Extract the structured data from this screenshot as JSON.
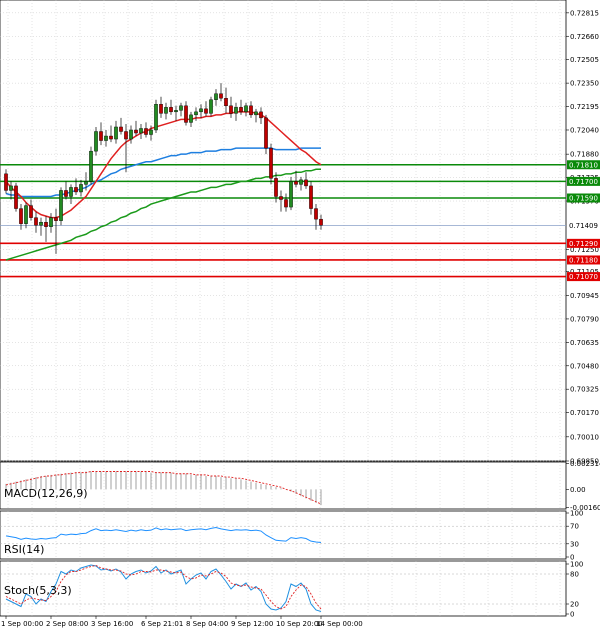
{
  "chart_data": {
    "type": "candlestick",
    "main": {
      "ylim": [
        0.6985,
        0.729
      ],
      "y_ticks": [
        {
          "value": 0.72815,
          "label": "0.72815"
        },
        {
          "value": 0.7266,
          "label": "0.72660"
        },
        {
          "value": 0.72505,
          "label": "0.72505"
        },
        {
          "value": 0.7235,
          "label": "0.72350"
        },
        {
          "value": 0.72195,
          "label": "0.72195"
        },
        {
          "value": 0.7204,
          "label": "0.72040"
        },
        {
          "value": 0.7188,
          "label": "0.71880"
        },
        {
          "value": 0.71725,
          "label": "0.71725"
        },
        {
          "value": 0.7157,
          "label": "0.71570"
        },
        {
          "value": 0.7125,
          "label": "0.71250"
        },
        {
          "value": 0.71105,
          "label": "0.71105"
        },
        {
          "value": 0.70945,
          "label": "0.70945"
        },
        {
          "value": 0.7079,
          "label": "0.70790"
        },
        {
          "value": 0.70635,
          "label": "0.70635"
        },
        {
          "value": 0.7048,
          "label": "0.70480"
        },
        {
          "value": 0.70325,
          "label": "0.70325"
        },
        {
          "value": 0.7017,
          "label": "0.70170"
        },
        {
          "value": 0.7001,
          "label": "0.70010"
        },
        {
          "value": 0.6985,
          "label": "0.69850"
        }
      ],
      "current_price": {
        "value": 0.71409,
        "label": "0.71409"
      },
      "resistance_levels": [
        {
          "value": 0.7181,
          "label": "0.71810"
        },
        {
          "value": 0.717,
          "label": "0.71700"
        },
        {
          "value": 0.7159,
          "label": "0.71590"
        }
      ],
      "support_levels": [
        {
          "value": 0.7129,
          "label": "0.71290"
        },
        {
          "value": 0.7118,
          "label": "0.71180"
        },
        {
          "value": 0.7107,
          "label": "0.71070"
        }
      ],
      "candles": [
        [
          0.7175,
          0.7178,
          0.7162,
          0.7164
        ],
        [
          0.7164,
          0.717,
          0.7158,
          0.7167
        ],
        [
          0.7167,
          0.7169,
          0.715,
          0.7152
        ],
        [
          0.7152,
          0.7155,
          0.7138,
          0.7142
        ],
        [
          0.7142,
          0.7156,
          0.7139,
          0.7154
        ],
        [
          0.7154,
          0.7158,
          0.7144,
          0.7146
        ],
        [
          0.7146,
          0.715,
          0.7136,
          0.7141
        ],
        [
          0.7141,
          0.7146,
          0.7134,
          0.7143
        ],
        [
          0.7143,
          0.7147,
          0.713,
          0.714
        ],
        [
          0.714,
          0.7149,
          0.7136,
          0.7146
        ],
        [
          0.7146,
          0.7152,
          0.7122,
          0.7144
        ],
        [
          0.7144,
          0.7166,
          0.7141,
          0.7164
        ],
        [
          0.7164,
          0.717,
          0.7158,
          0.716
        ],
        [
          0.716,
          0.7168,
          0.7155,
          0.7166
        ],
        [
          0.7166,
          0.7172,
          0.7161,
          0.7163
        ],
        [
          0.7163,
          0.7171,
          0.716,
          0.7168
        ],
        [
          0.7168,
          0.7176,
          0.7164,
          0.717
        ],
        [
          0.717,
          0.7193,
          0.7168,
          0.719
        ],
        [
          0.719,
          0.7206,
          0.7187,
          0.7203
        ],
        [
          0.7203,
          0.7209,
          0.7194,
          0.7197
        ],
        [
          0.7197,
          0.7204,
          0.7193,
          0.72
        ],
        [
          0.72,
          0.7207,
          0.7196,
          0.7198
        ],
        [
          0.7198,
          0.721,
          0.7195,
          0.7206
        ],
        [
          0.7206,
          0.7212,
          0.7201,
          0.7203
        ],
        [
          0.7203,
          0.7208,
          0.7176,
          0.7198
        ],
        [
          0.7198,
          0.7207,
          0.7195,
          0.7204
        ],
        [
          0.7204,
          0.721,
          0.72,
          0.7202
        ],
        [
          0.7202,
          0.7208,
          0.7198,
          0.7205
        ],
        [
          0.7205,
          0.7209,
          0.7199,
          0.7201
        ],
        [
          0.7201,
          0.7207,
          0.7197,
          0.7204
        ],
        [
          0.7204,
          0.7224,
          0.7202,
          0.7221
        ],
        [
          0.7221,
          0.7226,
          0.7212,
          0.7215
        ],
        [
          0.7215,
          0.7222,
          0.7211,
          0.7219
        ],
        [
          0.7219,
          0.7224,
          0.7214,
          0.7216
        ],
        [
          0.7216,
          0.722,
          0.721,
          0.7217
        ],
        [
          0.7217,
          0.7222,
          0.7213,
          0.722
        ],
        [
          0.722,
          0.7223,
          0.7207,
          0.7209
        ],
        [
          0.7209,
          0.7216,
          0.7206,
          0.7214
        ],
        [
          0.7214,
          0.7219,
          0.721,
          0.7216
        ],
        [
          0.7216,
          0.7221,
          0.7212,
          0.7218
        ],
        [
          0.7218,
          0.7223,
          0.7213,
          0.7215
        ],
        [
          0.7215,
          0.7226,
          0.7213,
          0.7224
        ],
        [
          0.7224,
          0.7231,
          0.722,
          0.7228
        ],
        [
          0.7228,
          0.7235,
          0.7223,
          0.7225
        ],
        [
          0.7225,
          0.7232,
          0.7215,
          0.722
        ],
        [
          0.722,
          0.7226,
          0.7212,
          0.7215
        ],
        [
          0.7215,
          0.7222,
          0.721,
          0.7219
        ],
        [
          0.7219,
          0.7224,
          0.7214,
          0.7216
        ],
        [
          0.7216,
          0.7222,
          0.7213,
          0.722
        ],
        [
          0.722,
          0.7223,
          0.7212,
          0.7214
        ],
        [
          0.7214,
          0.7218,
          0.7209,
          0.7216
        ],
        [
          0.7216,
          0.7219,
          0.7208,
          0.7212
        ],
        [
          0.7212,
          0.7214,
          0.7188,
          0.7192
        ],
        [
          0.7192,
          0.7195,
          0.7168,
          0.7172
        ],
        [
          0.7172,
          0.7176,
          0.7156,
          0.716
        ],
        [
          0.716,
          0.7164,
          0.715,
          0.7158
        ],
        [
          0.7158,
          0.7162,
          0.715,
          0.7153
        ],
        [
          0.7153,
          0.7173,
          0.7151,
          0.717
        ],
        [
          0.717,
          0.7177,
          0.7166,
          0.7168
        ],
        [
          0.7168,
          0.7173,
          0.7164,
          0.7171
        ],
        [
          0.7171,
          0.7176,
          0.7165,
          0.7167
        ],
        [
          0.7167,
          0.717,
          0.7148,
          0.7152
        ],
        [
          0.7152,
          0.7155,
          0.7138,
          0.7145
        ],
        [
          0.7145,
          0.7148,
          0.7138,
          0.7141
        ]
      ],
      "sma_red": [
        0.717,
        0.7166,
        0.7163,
        0.716,
        0.7156,
        0.7153,
        0.715,
        0.7148,
        0.7147,
        0.7146,
        0.7146,
        0.7147,
        0.7149,
        0.7151,
        0.7154,
        0.7157,
        0.716,
        0.7165,
        0.717,
        0.7175,
        0.718,
        0.7185,
        0.7189,
        0.7193,
        0.7196,
        0.7198,
        0.72,
        0.7202,
        0.7203,
        0.7205,
        0.7206,
        0.7207,
        0.7208,
        0.7209,
        0.721,
        0.7211,
        0.7211,
        0.7211,
        0.7212,
        0.7212,
        0.7213,
        0.7213,
        0.7214,
        0.7214,
        0.7215,
        0.7215,
        0.7216,
        0.7216,
        0.7216,
        0.7216,
        0.7215,
        0.7214,
        0.7212,
        0.7209,
        0.7206,
        0.7203,
        0.72,
        0.7197,
        0.7194,
        0.7191,
        0.7189,
        0.7186,
        0.7183,
        0.7181
      ],
      "sma_blue": [
        0.7162,
        0.7161,
        0.7161,
        0.716,
        0.716,
        0.716,
        0.716,
        0.716,
        0.716,
        0.716,
        0.7161,
        0.7161,
        0.7162,
        0.7163,
        0.7164,
        0.7165,
        0.7166,
        0.7168,
        0.717,
        0.7171,
        0.7173,
        0.7175,
        0.7176,
        0.7178,
        0.7179,
        0.718,
        0.7181,
        0.7182,
        0.7183,
        0.7183,
        0.7184,
        0.7185,
        0.7186,
        0.7187,
        0.7187,
        0.7188,
        0.7188,
        0.7189,
        0.7189,
        0.7189,
        0.719,
        0.719,
        0.719,
        0.7191,
        0.7191,
        0.7191,
        0.7192,
        0.7192,
        0.7192,
        0.7192,
        0.7192,
        0.7192,
        0.7192,
        0.7192,
        0.7191,
        0.7191,
        0.7191,
        0.7191,
        0.7191,
        0.7192,
        0.7192,
        0.7192,
        0.7192,
        0.7192
      ],
      "sma_green": [
        0.7118,
        0.7119,
        0.712,
        0.7121,
        0.7122,
        0.7123,
        0.7124,
        0.7125,
        0.7126,
        0.7127,
        0.7128,
        0.7129,
        0.713,
        0.7131,
        0.7133,
        0.7134,
        0.7135,
        0.7137,
        0.7138,
        0.714,
        0.7141,
        0.7143,
        0.7144,
        0.7146,
        0.7147,
        0.7149,
        0.715,
        0.7152,
        0.7153,
        0.7155,
        0.7156,
        0.7157,
        0.7158,
        0.7159,
        0.716,
        0.7161,
        0.7162,
        0.7163,
        0.7163,
        0.7164,
        0.7165,
        0.7166,
        0.7166,
        0.7167,
        0.7168,
        0.7168,
        0.7169,
        0.717,
        0.717,
        0.7171,
        0.7172,
        0.7172,
        0.7173,
        0.7173,
        0.7174,
        0.7174,
        0.7175,
        0.7175,
        0.7176,
        0.7176,
        0.7177,
        0.7177,
        0.7178,
        0.7178
      ]
    },
    "macd": {
      "title": "MACD(12,26,9)",
      "ylim": [
        -0.00175,
        0.00245
      ],
      "y_ticks": [
        {
          "value": 0.002314,
          "label": "0.002314"
        },
        {
          "value": 0.0,
          "label": "0.00"
        },
        {
          "value": -0.001602,
          "label": "-0.001602"
        }
      ],
      "histogram": [
        0.0005,
        0.0006,
        0.0007,
        0.0008,
        0.0009,
        0.001,
        0.0011,
        0.0012,
        0.0012,
        0.0013,
        0.0013,
        0.0014,
        0.0014,
        0.0015,
        0.0015,
        0.0015,
        0.0016,
        0.0016,
        0.0016,
        0.0016,
        0.0016,
        0.0016,
        0.0016,
        0.0016,
        0.0016,
        0.0016,
        0.0016,
        0.0016,
        0.0016,
        0.0015,
        0.0015,
        0.0015,
        0.0015,
        0.0015,
        0.0014,
        0.0014,
        0.0014,
        0.0013,
        0.0013,
        0.0013,
        0.0012,
        0.0012,
        0.0012,
        0.0011,
        0.0011,
        0.001,
        0.001,
        0.0009,
        0.0008,
        0.0007,
        0.0006,
        0.0005,
        0.0004,
        0.0003,
        0.0002,
        0.0001,
        0.0,
        -0.0002,
        -0.0004,
        -0.0006,
        -0.0008,
        -0.001,
        -0.0012,
        -0.0014
      ],
      "signal": [
        0.0004,
        0.0005,
        0.0006,
        0.0007,
        0.0008,
        0.0009,
        0.001,
        0.0011,
        0.0012,
        0.0012,
        0.0013,
        0.0013,
        0.0014,
        0.0014,
        0.0015,
        0.0015,
        0.0015,
        0.0016,
        0.0016,
        0.0016,
        0.0016,
        0.0016,
        0.0016,
        0.0016,
        0.0016,
        0.0016,
        0.0016,
        0.0016,
        0.0016,
        0.0016,
        0.0015,
        0.0015,
        0.0015,
        0.0015,
        0.0014,
        0.0014,
        0.0014,
        0.0014,
        0.0013,
        0.0013,
        0.0013,
        0.0012,
        0.0012,
        0.0012,
        0.0011,
        0.0011,
        0.001,
        0.001,
        0.0009,
        0.0008,
        0.0007,
        0.0006,
        0.0005,
        0.0004,
        0.0003,
        0.0002,
        0.0,
        -0.0001,
        -0.0003,
        -0.0005,
        -0.0007,
        -0.0009,
        -0.0011,
        -0.0013
      ]
    },
    "rsi": {
      "title": "RSI(14)",
      "ylim": [
        0,
        100
      ],
      "y_ticks": [
        {
          "value": 100,
          "label": "100"
        },
        {
          "value": 70,
          "label": "70"
        },
        {
          "value": 30,
          "label": "30"
        },
        {
          "value": 0,
          "label": "0"
        }
      ],
      "values": [
        48,
        46,
        44,
        40,
        43,
        41,
        40,
        42,
        41,
        43,
        44,
        52,
        50,
        52,
        51,
        53,
        54,
        60,
        64,
        60,
        61,
        60,
        62,
        60,
        58,
        61,
        59,
        62,
        60,
        61,
        66,
        62,
        64,
        62,
        63,
        64,
        60,
        62,
        63,
        64,
        62,
        65,
        67,
        64,
        62,
        60,
        62,
        61,
        62,
        60,
        61,
        59,
        50,
        44,
        38,
        37,
        36,
        44,
        42,
        44,
        42,
        36,
        34,
        33
      ]
    },
    "stoch": {
      "title": "Stoch(5,3,3)",
      "ylim": [
        0,
        100
      ],
      "y_ticks": [
        {
          "value": 100,
          "label": "100"
        },
        {
          "value": 80,
          "label": "80"
        },
        {
          "value": 20,
          "label": "20"
        },
        {
          "value": 0,
          "label": "0"
        }
      ],
      "k": [
        30,
        25,
        20,
        15,
        40,
        35,
        20,
        30,
        25,
        45,
        60,
        85,
        80,
        88,
        85,
        92,
        95,
        98,
        96,
        88,
        90,
        86,
        90,
        84,
        70,
        80,
        85,
        88,
        82,
        86,
        95,
        82,
        88,
        80,
        84,
        88,
        60,
        70,
        78,
        82,
        70,
        85,
        90,
        78,
        65,
        50,
        60,
        55,
        62,
        48,
        55,
        45,
        20,
        10,
        8,
        12,
        25,
        60,
        55,
        62,
        50,
        20,
        8,
        5
      ],
      "d": [
        35,
        30,
        25,
        20,
        28,
        32,
        30,
        28,
        27,
        35,
        45,
        65,
        78,
        85,
        85,
        88,
        92,
        95,
        97,
        92,
        90,
        88,
        88,
        86,
        80,
        78,
        80,
        85,
        85,
        84,
        88,
        88,
        86,
        84,
        82,
        84,
        75,
        70,
        72,
        78,
        76,
        80,
        85,
        82,
        75,
        62,
        58,
        56,
        58,
        54,
        52,
        50,
        38,
        25,
        15,
        10,
        15,
        35,
        48,
        58,
        55,
        40,
        22,
        10
      ]
    },
    "x_ticks": [
      {
        "index": 0,
        "label": "1 Sep 00:00"
      },
      {
        "index": 9,
        "label": "2 Sep 08:00"
      },
      {
        "index": 18,
        "label": "3 Sep 16:00"
      },
      {
        "index": 28,
        "label": "6 Sep 21:01"
      },
      {
        "index": 37,
        "label": "8 Sep 04:00"
      },
      {
        "index": 46,
        "label": "9 Sep 12:00"
      },
      {
        "index": 55,
        "label": "10 Sep 20:00"
      },
      {
        "index": 63,
        "label": "14 Sep 00:00"
      }
    ],
    "colors": {
      "bull_candle": "#228B22",
      "bear_candle": "#C00000",
      "sma_red": "#E02020",
      "sma_blue": "#1E7FE0",
      "sma_green": "#1A9A1A",
      "resistance": "#0A8A0A",
      "support": "#E00000",
      "current_price": "#8AA0C8",
      "macd_hist": "#A0A0A0",
      "macd_signal": "#E02020",
      "rsi_line": "#1E90FF",
      "stoch_k": "#2090E0",
      "stoch_d": "#E02020"
    }
  }
}
